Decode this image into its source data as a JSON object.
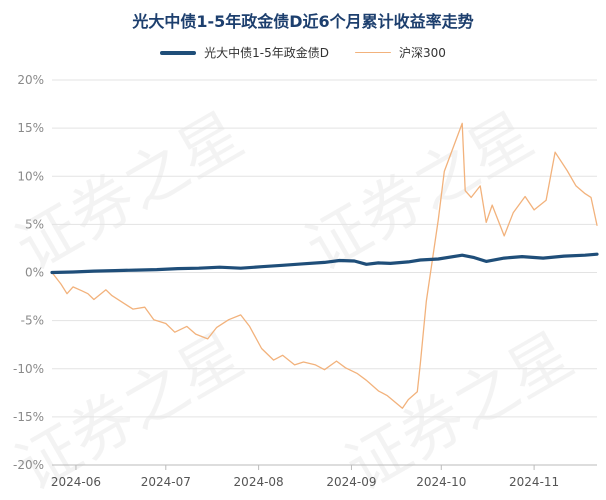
{
  "title": "光大中债1-5年政金债D近6个月累计收益率走势",
  "watermark": "证券之星",
  "colors": {
    "fund": "#1f4e79",
    "index": "#f2b27c",
    "grid": "#e3e3e3",
    "title": "#1d3f6e"
  },
  "chart_data": {
    "type": "line",
    "title": "光大中债1-5年政金债D近6个月累计收益率走势",
    "yticks": [
      "20%",
      "15%",
      "10%",
      "5%",
      "0%",
      "-5%",
      "-10%",
      "-15%",
      "-20%"
    ],
    "ylim": [
      -20,
      20
    ],
    "xticks": [
      "2024-06",
      "2024-07",
      "2024-08",
      "2024-09",
      "2024-10",
      "2024-11"
    ],
    "xlim": [
      "2024-05-24",
      "2024-11-22"
    ],
    "grid": "horizontal",
    "legend_position": "top-center",
    "series": [
      {
        "name": "光大中债1-5年政金债D",
        "style": "thick",
        "points": [
          [
            "2024-05-24",
            0.0
          ],
          [
            "2024-05-31",
            0.05
          ],
          [
            "2024-06-07",
            0.15
          ],
          [
            "2024-06-14",
            0.2
          ],
          [
            "2024-06-21",
            0.25
          ],
          [
            "2024-06-28",
            0.3
          ],
          [
            "2024-07-05",
            0.4
          ],
          [
            "2024-07-12",
            0.45
          ],
          [
            "2024-07-19",
            0.55
          ],
          [
            "2024-07-26",
            0.45
          ],
          [
            "2024-08-02",
            0.6
          ],
          [
            "2024-08-09",
            0.75
          ],
          [
            "2024-08-16",
            0.9
          ],
          [
            "2024-08-23",
            1.05
          ],
          [
            "2024-08-28",
            1.25
          ],
          [
            "2024-09-02",
            1.2
          ],
          [
            "2024-09-06",
            0.85
          ],
          [
            "2024-09-10",
            1.0
          ],
          [
            "2024-09-14",
            0.95
          ],
          [
            "2024-09-20",
            1.1
          ],
          [
            "2024-09-24",
            1.3
          ],
          [
            "2024-09-30",
            1.4
          ],
          [
            "2024-10-08",
            1.8
          ],
          [
            "2024-10-12",
            1.55
          ],
          [
            "2024-10-16",
            1.15
          ],
          [
            "2024-10-22",
            1.5
          ],
          [
            "2024-10-28",
            1.65
          ],
          [
            "2024-11-04",
            1.5
          ],
          [
            "2024-11-11",
            1.7
          ],
          [
            "2024-11-18",
            1.8
          ],
          [
            "2024-11-22",
            1.9
          ]
        ]
      },
      {
        "name": "沪深300",
        "style": "thin",
        "points": [
          [
            "2024-05-24",
            0.0
          ],
          [
            "2024-05-27",
            -1.2
          ],
          [
            "2024-05-29",
            -2.2
          ],
          [
            "2024-05-31",
            -1.5
          ],
          [
            "2024-06-03",
            -1.9
          ],
          [
            "2024-06-05",
            -2.2
          ],
          [
            "2024-06-07",
            -2.8
          ],
          [
            "2024-06-11",
            -1.8
          ],
          [
            "2024-06-13",
            -2.4
          ],
          [
            "2024-06-17",
            -3.2
          ],
          [
            "2024-06-20",
            -3.8
          ],
          [
            "2024-06-24",
            -3.6
          ],
          [
            "2024-06-27",
            -4.9
          ],
          [
            "2024-07-01",
            -5.3
          ],
          [
            "2024-07-04",
            -6.2
          ],
          [
            "2024-07-08",
            -5.6
          ],
          [
            "2024-07-11",
            -6.4
          ],
          [
            "2024-07-15",
            -6.9
          ],
          [
            "2024-07-18",
            -5.7
          ],
          [
            "2024-07-22",
            -4.9
          ],
          [
            "2024-07-26",
            -4.4
          ],
          [
            "2024-07-29",
            -5.6
          ],
          [
            "2024-08-02",
            -7.9
          ],
          [
            "2024-08-06",
            -9.1
          ],
          [
            "2024-08-09",
            -8.6
          ],
          [
            "2024-08-13",
            -9.6
          ],
          [
            "2024-08-16",
            -9.3
          ],
          [
            "2024-08-20",
            -9.6
          ],
          [
            "2024-08-23",
            -10.1
          ],
          [
            "2024-08-27",
            -9.2
          ],
          [
            "2024-08-30",
            -9.9
          ],
          [
            "2024-09-03",
            -10.5
          ],
          [
            "2024-09-06",
            -11.2
          ],
          [
            "2024-09-10",
            -12.3
          ],
          [
            "2024-09-13",
            -12.8
          ],
          [
            "2024-09-18",
            -14.1
          ],
          [
            "2024-09-20",
            -13.2
          ],
          [
            "2024-09-23",
            -12.4
          ],
          [
            "2024-09-24",
            -9.5
          ],
          [
            "2024-09-26",
            -3.0
          ],
          [
            "2024-09-30",
            5.5
          ],
          [
            "2024-10-02",
            10.5
          ],
          [
            "2024-10-08",
            15.5
          ],
          [
            "2024-10-09",
            8.5
          ],
          [
            "2024-10-11",
            7.8
          ],
          [
            "2024-10-14",
            9.0
          ],
          [
            "2024-10-16",
            5.2
          ],
          [
            "2024-10-18",
            7.0
          ],
          [
            "2024-10-22",
            3.8
          ],
          [
            "2024-10-25",
            6.2
          ],
          [
            "2024-10-29",
            7.9
          ],
          [
            "2024-11-01",
            6.5
          ],
          [
            "2024-11-05",
            7.5
          ],
          [
            "2024-11-08",
            12.5
          ],
          [
            "2024-11-12",
            10.6
          ],
          [
            "2024-11-15",
            9.0
          ],
          [
            "2024-11-18",
            8.2
          ],
          [
            "2024-11-20",
            7.8
          ],
          [
            "2024-11-22",
            4.9
          ]
        ]
      }
    ]
  }
}
